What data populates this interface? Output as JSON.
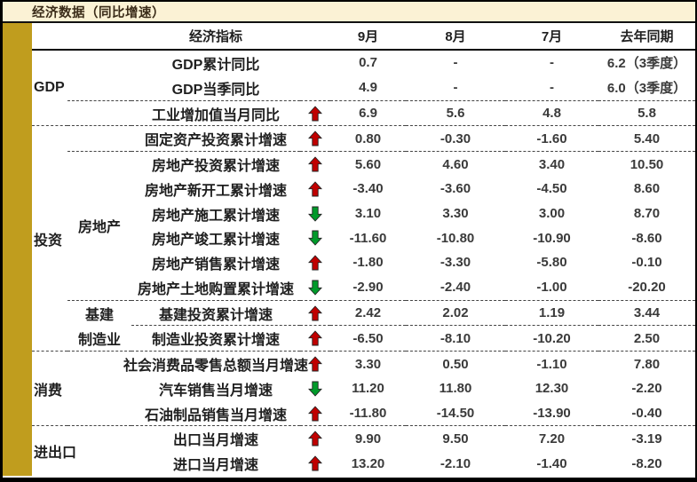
{
  "title": "经济数据（同比增速）",
  "colors": {
    "accent_gold": "#C09D1E",
    "title_bg": "#FBF2D5",
    "up_red": "#C00000",
    "down_green": "#009A2A",
    "text_dark": "#1f1f1f"
  },
  "chart_data": {
    "type": "table",
    "title": "经济数据（同比增速）",
    "columns": [
      "经济指标",
      "9月",
      "8月",
      "7月",
      "去年同期"
    ],
    "trend_legend": {
      "up": "红色向上箭头",
      "down": "绿色向下箭头"
    },
    "groups": [
      {
        "category": "GDP",
        "rows": [
          {
            "sub": "",
            "indicator": "GDP累计同比",
            "trend": null,
            "values": [
              "0.7",
              "-",
              "-",
              "6.2（3季度）"
            ]
          },
          {
            "sub": "",
            "indicator": "GDP当季同比",
            "trend": null,
            "values": [
              "4.9",
              "-",
              "-",
              "6.0（3季度）"
            ]
          },
          {
            "sub": "",
            "indicator": "工业增加值当月同比",
            "trend": "up",
            "values": [
              "6.9",
              "5.6",
              "4.8",
              "5.8"
            ]
          }
        ]
      },
      {
        "category": "投资",
        "rows": [
          {
            "sub": "",
            "indicator": "固定资产投资累计增速",
            "trend": "up",
            "values": [
              "0.80",
              "-0.30",
              "-1.60",
              "5.40"
            ]
          },
          {
            "sub": "房地产",
            "indicator": "房地产投资累计增速",
            "trend": "up",
            "values": [
              "5.60",
              "4.60",
              "3.40",
              "10.50"
            ]
          },
          {
            "sub": "房地产",
            "indicator": "房地产新开工累计增速",
            "trend": "up",
            "values": [
              "-3.40",
              "-3.60",
              "-4.50",
              "8.60"
            ]
          },
          {
            "sub": "房地产",
            "indicator": "房地产施工累计增速",
            "trend": "down",
            "values": [
              "3.10",
              "3.30",
              "3.00",
              "8.70"
            ]
          },
          {
            "sub": "房地产",
            "indicator": "房地产竣工累计增速",
            "trend": "down",
            "values": [
              "-11.60",
              "-10.80",
              "-10.90",
              "-8.60"
            ]
          },
          {
            "sub": "房地产",
            "indicator": "房地产销售累计增速",
            "trend": "up",
            "values": [
              "-1.80",
              "-3.30",
              "-5.80",
              "-0.10"
            ]
          },
          {
            "sub": "房地产",
            "indicator": "房地产土地购置累计增速",
            "trend": "down",
            "values": [
              "-2.90",
              "-2.40",
              "-1.00",
              "-20.20"
            ]
          },
          {
            "sub": "基建",
            "indicator": "基建投资累计增速",
            "trend": "up",
            "values": [
              "2.42",
              "2.02",
              "1.19",
              "3.44"
            ]
          },
          {
            "sub": "制造业",
            "indicator": "制造业投资累计增速",
            "trend": "up",
            "values": [
              "-6.50",
              "-8.10",
              "-10.20",
              "2.50"
            ]
          }
        ]
      },
      {
        "category": "消费",
        "rows": [
          {
            "sub": "",
            "indicator": "社会消费品零售总额当月增速",
            "trend": "up",
            "values": [
              "3.30",
              "0.50",
              "-1.10",
              "7.80"
            ]
          },
          {
            "sub": "",
            "indicator": "汽车销售当月增速",
            "trend": "down",
            "values": [
              "11.20",
              "11.80",
              "12.30",
              "-2.20"
            ]
          },
          {
            "sub": "",
            "indicator": "石油制品销售当月增速",
            "trend": "up",
            "values": [
              "-11.80",
              "-14.50",
              "-13.90",
              "-0.40"
            ]
          }
        ]
      },
      {
        "category": "进出口",
        "rows": [
          {
            "sub": "",
            "indicator": "出口当月增速",
            "trend": "up",
            "values": [
              "9.90",
              "9.50",
              "7.20",
              "-3.19"
            ]
          },
          {
            "sub": "",
            "indicator": "进口当月增速",
            "trend": "up",
            "values": [
              "13.20",
              "-2.10",
              "-1.40",
              "-8.20"
            ]
          }
        ]
      }
    ]
  }
}
